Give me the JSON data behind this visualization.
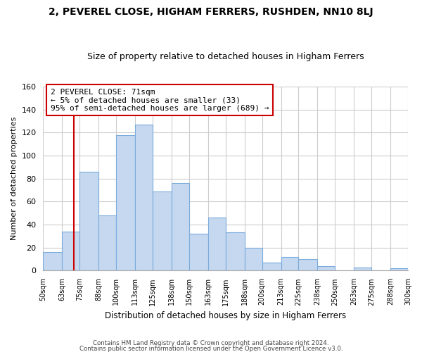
{
  "title": "2, PEVEREL CLOSE, HIGHAM FERRERS, RUSHDEN, NN10 8LJ",
  "subtitle": "Size of property relative to detached houses in Higham Ferrers",
  "xlabel": "Distribution of detached houses by size in Higham Ferrers",
  "ylabel": "Number of detached properties",
  "bin_edges": [
    50,
    63,
    75,
    88,
    100,
    113,
    125,
    138,
    150,
    163,
    175,
    188,
    200,
    213,
    225,
    238,
    250,
    263,
    275,
    288,
    300
  ],
  "bar_heights": [
    16,
    34,
    86,
    48,
    118,
    127,
    69,
    76,
    32,
    46,
    33,
    20,
    7,
    12,
    10,
    4,
    0,
    3,
    0,
    2
  ],
  "bar_color": "#c5d8f0",
  "bar_edge_color": "#7aabdc",
  "vline_x": 71,
  "vline_color": "#cc0000",
  "ylim": [
    0,
    160
  ],
  "annotation_title": "2 PEVEREL CLOSE: 71sqm",
  "annotation_line1": "← 5% of detached houses are smaller (33)",
  "annotation_line2": "95% of semi-detached houses are larger (689) →",
  "annotation_box_color": "#ffffff",
  "annotation_box_edge": "#cc0000",
  "footer_line1": "Contains HM Land Registry data © Crown copyright and database right 2024.",
  "footer_line2": "Contains public sector information licensed under the Open Government Licence v3.0.",
  "background_color": "#ffffff",
  "grid_color": "#cccccc",
  "tick_labels": [
    "50sqm",
    "63sqm",
    "75sqm",
    "88sqm",
    "100sqm",
    "113sqm",
    "125sqm",
    "138sqm",
    "150sqm",
    "163sqm",
    "175sqm",
    "188sqm",
    "200sqm",
    "213sqm",
    "225sqm",
    "238sqm",
    "250sqm",
    "263sqm",
    "275sqm",
    "288sqm",
    "300sqm"
  ],
  "title_fontsize": 10,
  "subtitle_fontsize": 9
}
